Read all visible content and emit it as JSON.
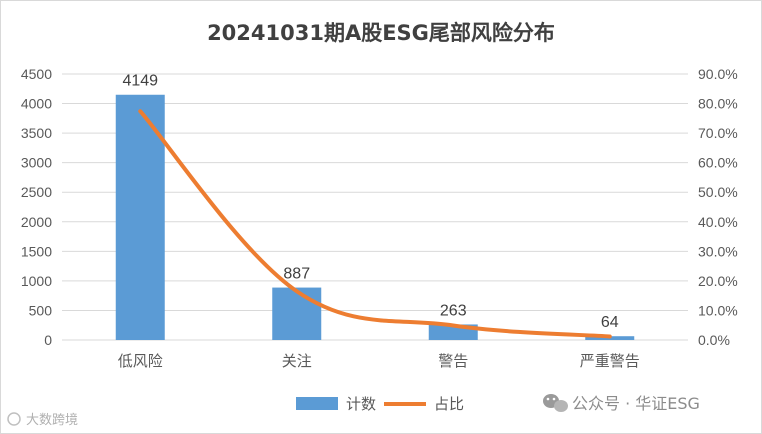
{
  "chart_data": {
    "type": "bar",
    "title": "20241031期A股ESG尾部风险分布",
    "categories": [
      "低风险",
      "关注",
      "警告",
      "严重警告"
    ],
    "series": [
      {
        "name": "计数",
        "type": "bar",
        "axis": "left",
        "values": [
          4149,
          887,
          263,
          64
        ],
        "data_labels": [
          "4149",
          "887",
          "263",
          "64"
        ],
        "color": "#5b9bd5"
      },
      {
        "name": "占比",
        "type": "line",
        "axis": "right",
        "values": [
          77.4,
          16.5,
          4.9,
          1.2
        ],
        "color": "#ed7d31"
      }
    ],
    "y_left": {
      "range": [
        0,
        4500
      ],
      "ticks": [
        "0",
        "500",
        "1000",
        "1500",
        "2000",
        "2500",
        "3000",
        "3500",
        "4000",
        "4500"
      ]
    },
    "y_right": {
      "range": [
        0,
        90
      ],
      "ticks": [
        "0.0%",
        "10.0%",
        "20.0%",
        "30.0%",
        "40.0%",
        "50.0%",
        "60.0%",
        "70.0%",
        "80.0%",
        "90.0%"
      ]
    },
    "grid": true,
    "legend_position": "bottom"
  },
  "watermark": {
    "right_text": "公众号 · 华证ESG",
    "right_icon": "wechat-icon",
    "left_text": "大数跨境"
  },
  "colors": {
    "bar": "#5b9bd5",
    "line": "#ed7d31",
    "grid": "#d9d9d9"
  }
}
